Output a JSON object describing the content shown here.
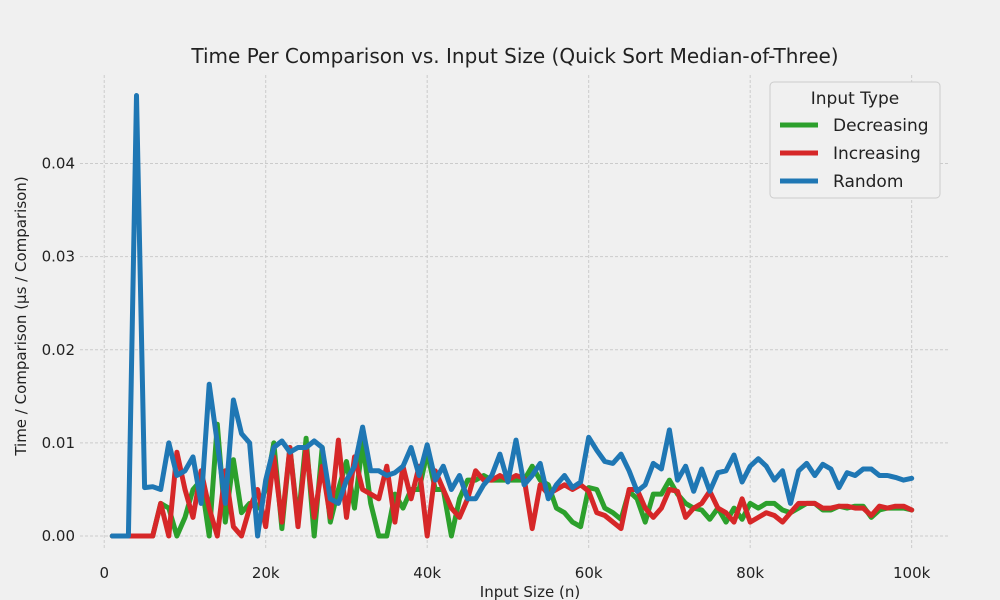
{
  "chart_data": {
    "type": "line",
    "title": "Time Per Comparison vs. Input Size (Quick Sort Median-of-Three)",
    "xlabel": "Input Size (n)",
    "ylabel": "Time / Comparison (μs / Comparison)",
    "xlim": [
      -3000,
      104500
    ],
    "ylim": [
      -0.0015,
      0.0495
    ],
    "x_ticks": [
      {
        "value": 0,
        "label": "0"
      },
      {
        "value": 20000,
        "label": "20k"
      },
      {
        "value": 40000,
        "label": "40k"
      },
      {
        "value": 60000,
        "label": "60k"
      },
      {
        "value": 80000,
        "label": "80k"
      },
      {
        "value": 100000,
        "label": "100k"
      }
    ],
    "y_ticks": [
      {
        "value": 0,
        "label": "0.00"
      },
      {
        "value": 0.01,
        "label": "0.01"
      },
      {
        "value": 0.02,
        "label": "0.02"
      },
      {
        "value": 0.03,
        "label": "0.03"
      },
      {
        "value": 0.04,
        "label": "0.04"
      }
    ],
    "grid": true,
    "legend": {
      "title": "Input Type",
      "placement": "top-right"
    },
    "x": [
      1000,
      2000,
      3000,
      4000,
      5000,
      6000,
      7000,
      8000,
      9000,
      10000,
      11000,
      12000,
      13000,
      14000,
      15000,
      16000,
      17000,
      18000,
      19000,
      20000,
      21000,
      22000,
      23000,
      24000,
      25000,
      26000,
      27000,
      28000,
      29000,
      30000,
      31000,
      32000,
      33000,
      34000,
      35000,
      36000,
      37000,
      38000,
      39000,
      40000,
      41000,
      42000,
      43000,
      44000,
      45000,
      46000,
      47000,
      48000,
      49000,
      50000,
      51000,
      52000,
      53000,
      54000,
      55000,
      56000,
      57000,
      58000,
      59000,
      60000,
      61000,
      62000,
      63000,
      64000,
      65000,
      66000,
      67000,
      68000,
      69000,
      70000,
      71000,
      72000,
      73000,
      74000,
      75000,
      76000,
      77000,
      78000,
      79000,
      80000,
      81000,
      82000,
      83000,
      84000,
      85000,
      86000,
      87000,
      88000,
      89000,
      90000,
      91000,
      92000,
      93000,
      94000,
      95000,
      96000,
      97000,
      98000,
      99000,
      100000
    ],
    "series": [
      {
        "name": "Decreasing",
        "color": "#2ca02c",
        "values": [
          0,
          0,
          0,
          0,
          0,
          0,
          0.0035,
          0.003,
          0,
          0.002,
          0.005,
          0.006,
          0,
          0.012,
          0.0015,
          0.0082,
          0.0025,
          0.0035,
          0.003,
          0.005,
          0.01,
          0.0008,
          0.0095,
          0.0015,
          0.0105,
          0,
          0.0095,
          0.0015,
          0.005,
          0.008,
          0.003,
          0.01,
          0.0035,
          0,
          0,
          0.0045,
          0.003,
          0.005,
          0.005,
          0.009,
          0.005,
          0.005,
          0,
          0.004,
          0.006,
          0.006,
          0.0065,
          0.006,
          0.006,
          0.006,
          0.006,
          0.006,
          0.0075,
          0.006,
          0.0055,
          0.003,
          0.0025,
          0.0015,
          0.001,
          0.0052,
          0.005,
          0.003,
          0.0025,
          0.0018,
          0.0048,
          0.004,
          0.0015,
          0.0045,
          0.0045,
          0.006,
          0.0045,
          0.0035,
          0.003,
          0.0028,
          0.0018,
          0.003,
          0.0015,
          0.003,
          0.0018,
          0.0035,
          0.003,
          0.0035,
          0.0035,
          0.0028,
          0.0025,
          0.003,
          0.0035,
          0.0035,
          0.0028,
          0.0028,
          0.0032,
          0.003,
          0.0032,
          0.0032,
          0.002,
          0.0028,
          0.003,
          0.003,
          0.003,
          0.0028
        ]
      },
      {
        "name": "Increasing",
        "color": "#d62728",
        "values": [
          0,
          0,
          0,
          0,
          0,
          0,
          0.0035,
          0,
          0.009,
          0.005,
          0.002,
          0.007,
          0.003,
          0,
          0.007,
          0.001,
          0,
          0.003,
          0.005,
          0.001,
          0.0085,
          0.0015,
          0.0095,
          0.001,
          0.0095,
          0.002,
          0.0075,
          0.002,
          0.0103,
          0.002,
          0.0085,
          0.005,
          0.0045,
          0.004,
          0.0075,
          0.0015,
          0.0075,
          0.004,
          0.0075,
          0,
          0.007,
          0.005,
          0.003,
          0.002,
          0.004,
          0.007,
          0.006,
          0.006,
          0.0065,
          0.006,
          0.0065,
          0.0062,
          0.0008,
          0.0055,
          0.0045,
          0.005,
          0.0055,
          0.005,
          0.0055,
          0.0048,
          0.0025,
          0.0022,
          0.0015,
          0.0008,
          0.005,
          0.005,
          0.003,
          0.002,
          0.003,
          0.005,
          0.0048,
          0.002,
          0.003,
          0.0035,
          0.0048,
          0.003,
          0.0025,
          0.0015,
          0.004,
          0.0015,
          0.002,
          0.0025,
          0.0022,
          0.0015,
          0.0025,
          0.0035,
          0.0035,
          0.0035,
          0.003,
          0.003,
          0.0032,
          0.0032,
          0.003,
          0.003,
          0.0022,
          0.0032,
          0.003,
          0.0032,
          0.0032,
          0.0028
        ]
      },
      {
        "name": "Random",
        "color": "#1f77b4",
        "values": [
          0,
          0,
          0,
          0.0473,
          0.0052,
          0.0053,
          0.005,
          0.01,
          0.0065,
          0.007,
          0.0085,
          0.0035,
          0.0163,
          0.01,
          0.0035,
          0.0146,
          0.011,
          0.01,
          0,
          0.006,
          0.0095,
          0.0102,
          0.009,
          0.0095,
          0.0095,
          0.0102,
          0.0095,
          0.004,
          0.0035,
          0.006,
          0.0075,
          0.0117,
          0.007,
          0.007,
          0.0065,
          0.0068,
          0.0075,
          0.0095,
          0.0065,
          0.0098,
          0.006,
          0.0075,
          0.005,
          0.0065,
          0.004,
          0.004,
          0.0055,
          0.0065,
          0.0088,
          0.0058,
          0.0103,
          0.0055,
          0.0065,
          0.0078,
          0.004,
          0.0055,
          0.0065,
          0.0052,
          0.0058,
          0.0106,
          0.0092,
          0.008,
          0.0078,
          0.0088,
          0.007,
          0.0048,
          0.0055,
          0.0078,
          0.0072,
          0.0114,
          0.006,
          0.0075,
          0.0048,
          0.0072,
          0.0048,
          0.0068,
          0.007,
          0.0087,
          0.0058,
          0.0075,
          0.0083,
          0.0075,
          0.006,
          0.007,
          0.0035,
          0.007,
          0.0078,
          0.0065,
          0.0077,
          0.0072,
          0.0052,
          0.0068,
          0.0065,
          0.0072,
          0.0072,
          0.0065,
          0.0065,
          0.0063,
          0.006,
          0.0062
        ]
      }
    ]
  }
}
